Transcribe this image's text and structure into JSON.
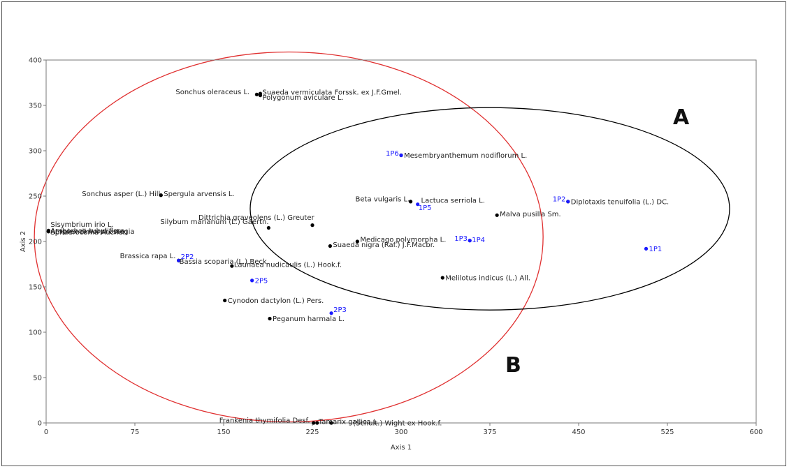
{
  "chart_data": {
    "type": "scatter",
    "xlabel": "Axis 1",
    "ylabel": "Axis 2",
    "xlim": [
      0,
      600
    ],
    "ylim": [
      0,
      400
    ],
    "xticks": [
      0,
      75,
      150,
      225,
      300,
      375,
      450,
      525,
      600
    ],
    "yticks": [
      0,
      50,
      100,
      150,
      200,
      250,
      300,
      350,
      400
    ],
    "grid": false,
    "colors": {
      "species": "#000000",
      "plots": "#1a1aff",
      "ellipse_a": "#000000",
      "ellipse_b": "#e03030"
    },
    "series": [
      {
        "name": "species",
        "color": "#000000",
        "points": [
          {
            "label": "Sonchus oleraceus L.",
            "x": 178,
            "y": 362
          },
          {
            "label": "Suaeda vermiculata Forssk. ex J.F.Gmel.",
            "x": 181,
            "y": 363
          },
          {
            "label": "Polygonum aviculare L.",
            "x": 181,
            "y": 361
          },
          {
            "label": "Mesembryanthemum nodiflorum L.",
            "x": 300,
            "y": 295
          },
          {
            "label": "Sonchus asper (L.) Hill",
            "x": 97,
            "y": 251
          },
          {
            "label": "Spergula arvensis L.",
            "x": 97,
            "y": 251
          },
          {
            "label": "Beta vulgaris L.",
            "x": 308,
            "y": 244
          },
          {
            "label": "Lactuca serriola L.",
            "x": 308,
            "y": 244
          },
          {
            "label": "Diplotaxis tenuifolia (L.) DC.",
            "x": 441,
            "y": 244
          },
          {
            "label": "Malva pusilla Sm.",
            "x": 381,
            "y": 229
          },
          {
            "label": "Dittrichia graveolens (L.) Greuter",
            "x": 225,
            "y": 218
          },
          {
            "label": "Silybum marianum (L.) Gaertn.",
            "x": 188,
            "y": 215
          },
          {
            "label": "Sisymbrium irio L.",
            "x": 2,
            "y": 212
          },
          {
            "label": "Atriplex dimorphostegia",
            "x": 2,
            "y": 211
          },
          {
            "label": "Amberboa tubuliflora",
            "x": 2,
            "y": 211
          },
          {
            "label": "Sphaerocoma Aucheri",
            "x": 2,
            "y": 211
          },
          {
            "label": "Medicago polymorpha L.",
            "x": 263,
            "y": 200
          },
          {
            "label": "Suaeda nigra (Raf.) J.F.Macbr.",
            "x": 240,
            "y": 195
          },
          {
            "label": "Brassica rapa L.",
            "x": 112,
            "y": 179
          },
          {
            "label": "Bassia scoparia (L.) Beck",
            "x": 112,
            "y": 179
          },
          {
            "label": "Launaea nudicaulis (L.) Hook.f.",
            "x": 157,
            "y": 173
          },
          {
            "label": "Melilotus indicus (L.) All.",
            "x": 335,
            "y": 160
          },
          {
            "label": "Cynodon dactylon (L.) Pers.",
            "x": 151,
            "y": 135
          },
          {
            "label": "Peganum harmala L.",
            "x": 189,
            "y": 115
          },
          {
            "label": "Frankenia thymifolia Desf.",
            "x": 226,
            "y": 0
          },
          {
            "label": "Tamarix gallica L.",
            "x": 229,
            "y": 0
          },
          {
            "label": "(Schult.) Wight ex Hook.f.",
            "x": 241,
            "y": 0
          }
        ]
      },
      {
        "name": "plots",
        "color": "#1a1aff",
        "points": [
          {
            "label": "1P1",
            "x": 507,
            "y": 192
          },
          {
            "label": "1P2",
            "x": 441,
            "y": 244
          },
          {
            "label": "1P3",
            "x": 358,
            "y": 201
          },
          {
            "label": "1P4",
            "x": 358,
            "y": 201
          },
          {
            "label": "1P5",
            "x": 314,
            "y": 241
          },
          {
            "label": "1P6",
            "x": 300,
            "y": 295
          },
          {
            "label": "2P2",
            "x": 112,
            "y": 179
          },
          {
            "label": "2P3",
            "x": 241,
            "y": 121
          },
          {
            "label": "2P5",
            "x": 174,
            "y": 157
          }
        ]
      }
    ],
    "annotations": [
      "A",
      "B"
    ]
  }
}
